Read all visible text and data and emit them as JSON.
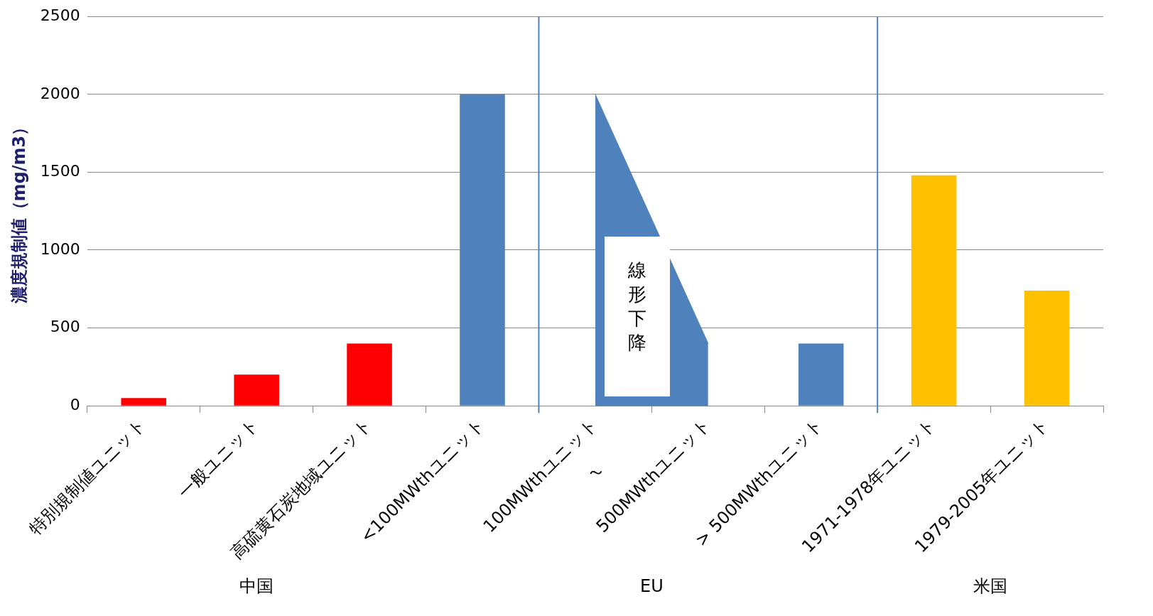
{
  "chart_data": {
    "type": "bar",
    "ylabel": "濃度規制値（mg/m3）",
    "categories": [
      "特別規制値ユニット",
      "一般ユニット",
      "高硫黄石炭地域ユニット",
      "<100MWthユニット",
      "100MWthユニット",
      "500MWthユニット",
      "> 500MWthユニット",
      "1971-1978年ユニット",
      "1979-2005年ユニット"
    ],
    "series": [
      {
        "colors": [
          "#ff0000",
          "#ff0000",
          "#ff0000",
          "#4f81bd",
          null,
          null,
          "#4f81bd",
          "#ffc000",
          "#ffc000"
        ],
        "values": [
          50,
          200,
          400,
          2000,
          null,
          null,
          400,
          1480,
          740
        ]
      },
      {
        "type": "area",
        "color": "#4f81bd",
        "values": [
          null,
          null,
          null,
          null,
          2000,
          400,
          null,
          null,
          null
        ]
      }
    ],
    "annotations": [
      "線形下降",
      "～",
      "中国",
      "EU",
      "米国"
    ],
    "ylim": [
      0,
      2500
    ],
    "yticks": [
      0,
      500,
      1000,
      1500,
      2000,
      2500
    ],
    "grid": "y",
    "legend": false
  }
}
